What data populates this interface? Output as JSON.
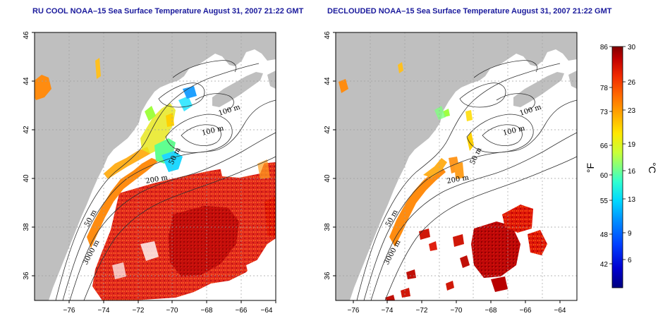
{
  "left_panel": {
    "title": "RU COOL NOAA–15 Sea Surface Temperature August 31, 2007 21:22 GMT"
  },
  "right_panel": {
    "title": "DECLOUDED NOAA–15 Sea Surface Temperature August 31, 2007 21:22 GMT"
  },
  "axes": {
    "x_ticks": [
      "−76",
      "−74",
      "−72",
      "−70",
      "−68",
      "−66",
      "−64"
    ],
    "y_ticks": [
      "36",
      "38",
      "40",
      "42",
      "44",
      "46"
    ],
    "lon_range": [
      -77,
      -63
    ],
    "lat_range": [
      35,
      46
    ]
  },
  "contours": {
    "labels": [
      "100 m",
      "100 m",
      "50 m",
      "200 m",
      "50 m",
      "3000 m"
    ]
  },
  "colorbar": {
    "fahrenheit_ticks": [
      "86",
      "78",
      "73",
      "66",
      "60",
      "55",
      "48",
      "42"
    ],
    "celsius_ticks": [
      "30",
      "26",
      "23",
      "19",
      "16",
      "13",
      "9",
      "6"
    ],
    "f_unit": "°F",
    "c_unit": "°C",
    "colors": [
      "#00007f",
      "#0000d0",
      "#0040ff",
      "#0090ff",
      "#00d8ff",
      "#30ffd0",
      "#80ff80",
      "#c8ff38",
      "#ffe800",
      "#ffa800",
      "#ff6800",
      "#f02800",
      "#c00000",
      "#800000"
    ]
  },
  "colors": {
    "land": "#bfbfbf",
    "ocean": "#ffffff",
    "grid": "#a0a0a0",
    "title": "#1a1a9c"
  }
}
